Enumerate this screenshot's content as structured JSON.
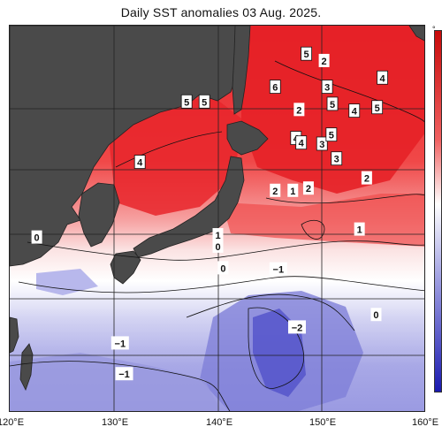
{
  "title": "Daily SST anomalies 03 Aug. 2025.",
  "axes": {
    "x_ticks": [
      "120°E",
      "130°E",
      "140°E",
      "150°E",
      "160°E"
    ],
    "lon_range": [
      120,
      160
    ],
    "lat_range": [
      16,
      50
    ]
  },
  "colors": {
    "land": "#4a4a4a",
    "grid": "#222222",
    "warm_strong": "#e8232a",
    "warm": "#f15a5a",
    "warm_light": "#f6a7a7",
    "neutral": "#ffffff",
    "cool_light": "#c9c9ee",
    "cool": "#8c8ce0",
    "cool_strong": "#4a4ad0"
  },
  "anomaly_labels": [
    {
      "text": "5",
      "lon": 148.5,
      "lat": 47.5
    },
    {
      "text": "2",
      "lon": 150.2,
      "lat": 46.9
    },
    {
      "text": "4",
      "lon": 155.8,
      "lat": 45.4
    },
    {
      "text": "6",
      "lon": 145.5,
      "lat": 44.6
    },
    {
      "text": "3",
      "lon": 150.5,
      "lat": 44.6
    },
    {
      "text": "5",
      "lon": 137.0,
      "lat": 43.3
    },
    {
      "text": "5",
      "lon": 138.7,
      "lat": 43.3
    },
    {
      "text": "2",
      "lon": 147.8,
      "lat": 42.6
    },
    {
      "text": "5",
      "lon": 151.0,
      "lat": 43.1
    },
    {
      "text": "4",
      "lon": 153.1,
      "lat": 42.5
    },
    {
      "text": "5",
      "lon": 155.3,
      "lat": 42.8
    },
    {
      "text": "4",
      "lon": 147.5,
      "lat": 40.1
    },
    {
      "text": "4",
      "lon": 148.0,
      "lat": 39.7
    },
    {
      "text": "3",
      "lon": 150.0,
      "lat": 39.6
    },
    {
      "text": "5",
      "lon": 150.9,
      "lat": 40.4
    },
    {
      "text": "3",
      "lon": 151.4,
      "lat": 38.3
    },
    {
      "text": "4",
      "lon": 132.5,
      "lat": 38.0
    },
    {
      "text": "2",
      "lon": 154.3,
      "lat": 36.6
    },
    {
      "text": "2",
      "lon": 145.5,
      "lat": 35.5
    },
    {
      "text": "1",
      "lon": 147.2,
      "lat": 35.5
    },
    {
      "text": "2",
      "lon": 148.7,
      "lat": 35.7
    },
    {
      "text": "1",
      "lon": 153.6,
      "lat": 32.1
    },
    {
      "text": "0",
      "lon": 122.6,
      "lat": 31.4
    },
    {
      "text": "1",
      "lon": 140.0,
      "lat": 31.6
    },
    {
      "text": "0",
      "lon": 140.0,
      "lat": 30.6
    },
    {
      "text": "0",
      "lon": 140.5,
      "lat": 28.7
    },
    {
      "text": "−1",
      "lon": 145.8,
      "lat": 28.6
    },
    {
      "text": "0",
      "lon": 155.2,
      "lat": 24.6
    },
    {
      "text": "−2",
      "lon": 147.6,
      "lat": 23.5
    },
    {
      "text": "−1",
      "lon": 130.6,
      "lat": 22.1
    },
    {
      "text": "−1",
      "lon": 131.0,
      "lat": 19.4
    }
  ]
}
